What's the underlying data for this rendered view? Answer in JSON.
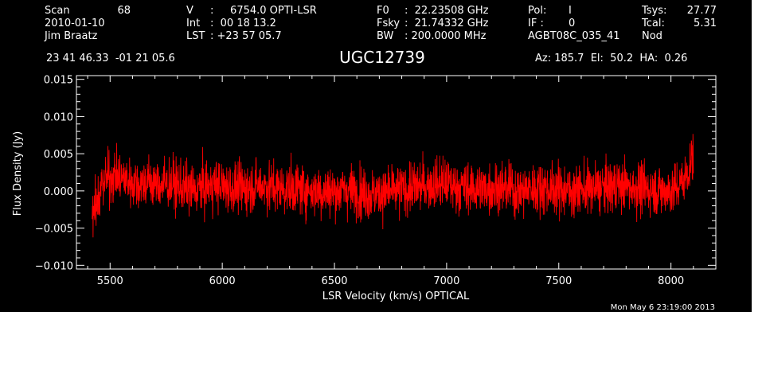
{
  "header": {
    "col1": [
      "Scan",
      "2010-01-10",
      "Jim Braatz"
    ],
    "scan_number": "68",
    "col2_label": [
      "V",
      "Int",
      "LST"
    ],
    "col2_value": [
      ":     6754.0 OPTI-LSR",
      ":  00 18 13.2",
      ": +23 57 05.7"
    ],
    "col3_label": [
      "F0",
      "Fsky",
      "BW"
    ],
    "col3_value": [
      ":  22.23508 GHz",
      ":  21.74332 GHz",
      ": 200.0000 MHz"
    ],
    "col4_label": [
      "Pol:",
      "IF :",
      "AGBT08C_035_41"
    ],
    "col4_value": [
      "I",
      "0",
      ""
    ],
    "col5_label": [
      "Tsys:",
      "Tcal:",
      "Nod"
    ],
    "col5_value": [
      "27.77",
      "5.31",
      ""
    ],
    "coords": "23 41 46.33  -01 21 05.6",
    "source": "UGC12739",
    "az_el_ha": "Az: 185.7  El:  50.2  HA:  0.26",
    "timestamp": "Mon May  6 23:19:00 2013"
  },
  "colors": {
    "background": "#000000",
    "axes": "#ffffff",
    "series": "#ff0000"
  },
  "chart_data": {
    "type": "line",
    "title": "UGC12739",
    "xlabel": "LSR Velocity (km/s) OPTICAL",
    "ylabel": "Flux Density (Jy)",
    "xlim": [
      5350,
      8200
    ],
    "ylim": [
      -0.0105,
      0.0155
    ],
    "xticks": [
      5500,
      6000,
      6500,
      7000,
      7500,
      8000
    ],
    "xtick_labels": [
      "5500",
      "6000",
      "6500",
      "7000",
      "7500",
      "8000"
    ],
    "yticks": [
      -0.01,
      -0.005,
      0.0,
      0.005,
      0.01,
      0.015
    ],
    "ytick_labels": [
      "−0.010",
      "−0.005",
      "0.000",
      "0.005",
      "0.010",
      "0.015"
    ],
    "series": [
      {
        "x_range": [
          5420,
          8100
        ],
        "x": [
          5420,
          5470,
          5520,
          5570,
          5620,
          5670,
          5720,
          5770,
          5820,
          5870,
          5920,
          5970,
          6020,
          6070,
          6120,
          6170,
          6220,
          6270,
          6320,
          6370,
          6420,
          6470,
          6520,
          6570,
          6620,
          6670,
          6720,
          6770,
          6820,
          6870,
          6920,
          6970,
          7020,
          7070,
          7120,
          7170,
          7220,
          7270,
          7320,
          7370,
          7420,
          7470,
          7520,
          7570,
          7620,
          7670,
          7720,
          7770,
          7820,
          7870,
          7920,
          7970,
          8020,
          8070,
          8100
        ],
        "y": [
          -0.004,
          0.0015,
          0.002,
          0.0015,
          0.001,
          0.0012,
          0.0008,
          0.001,
          0.0005,
          0.0,
          0.0005,
          0.0008,
          0.0005,
          0.0003,
          0.0005,
          0.0008,
          0.0005,
          0.0003,
          0.0003,
          0.0002,
          0.0,
          -0.0002,
          0.0,
          0.0002,
          -0.0002,
          -0.0005,
          -0.0003,
          0.0,
          0.0002,
          0.0005,
          0.0008,
          0.001,
          0.0008,
          0.0005,
          0.0003,
          0.0003,
          0.0005,
          0.0003,
          0.0,
          0.0002,
          0.0005,
          0.0003,
          0.0002,
          0.0,
          0.0002,
          0.0003,
          0.0005,
          0.0008,
          0.0005,
          0.0003,
          0.0002,
          0.0,
          0.0002,
          0.002,
          0.005
        ],
        "noise_rms": 0.002
      }
    ],
    "grid": false,
    "legend": "none"
  }
}
